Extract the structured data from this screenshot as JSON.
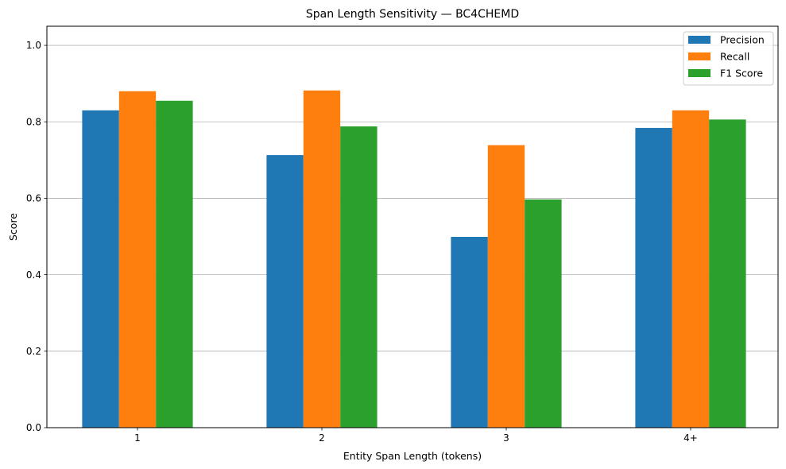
{
  "chart_data": {
    "type": "bar",
    "title": "Span Length Sensitivity — BC4CHEMD",
    "xlabel": "Entity Span Length (tokens)",
    "ylabel": "Score",
    "categories": [
      "1",
      "2",
      "3",
      "4+"
    ],
    "ylim": [
      0,
      1.05
    ],
    "yticks": [
      "0.0",
      "0.2",
      "0.4",
      "0.6",
      "0.8",
      "1.0"
    ],
    "grid": "horizontal",
    "legend_position": "top-right",
    "series": [
      {
        "name": "Precision",
        "color": "#1f77b4",
        "values": [
          0.83,
          0.713,
          0.499,
          0.784
        ]
      },
      {
        "name": "Recall",
        "color": "#ff7f0e",
        "values": [
          0.88,
          0.882,
          0.739,
          0.83
        ]
      },
      {
        "name": "F1 Score",
        "color": "#2ca02c",
        "values": [
          0.855,
          0.788,
          0.597,
          0.806
        ]
      }
    ]
  }
}
